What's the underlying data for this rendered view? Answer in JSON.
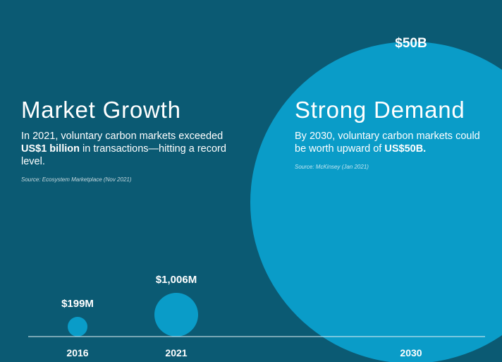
{
  "left_panel": {
    "title": "Market Growth",
    "body_prefix": "In 2021, voluntary carbon markets exceeded ",
    "body_bold": "US$1 billion",
    "body_suffix": " in transactions—hitting a record level.",
    "source": "Source: Ecosystem Marketplace (Nov 2021)"
  },
  "right_panel": {
    "title": "Strong Demand",
    "body_prefix": "By 2030, voluntary carbon markets could be worth upward of ",
    "body_bold": "US$50B.",
    "source": "Source: McKinsey (Jan 2021)"
  },
  "colors": {
    "background": "#0b5a73",
    "bubble": "#0a9cc8",
    "baseline": "#e6f2f6"
  },
  "chart_data": {
    "type": "bubble",
    "categories": [
      "2016",
      "2021",
      "2030"
    ],
    "values_million_usd": [
      199,
      1006,
      50000
    ],
    "value_labels": [
      "$199M",
      "$1,006M",
      "$50B"
    ],
    "xlabel": "",
    "ylabel": ""
  }
}
